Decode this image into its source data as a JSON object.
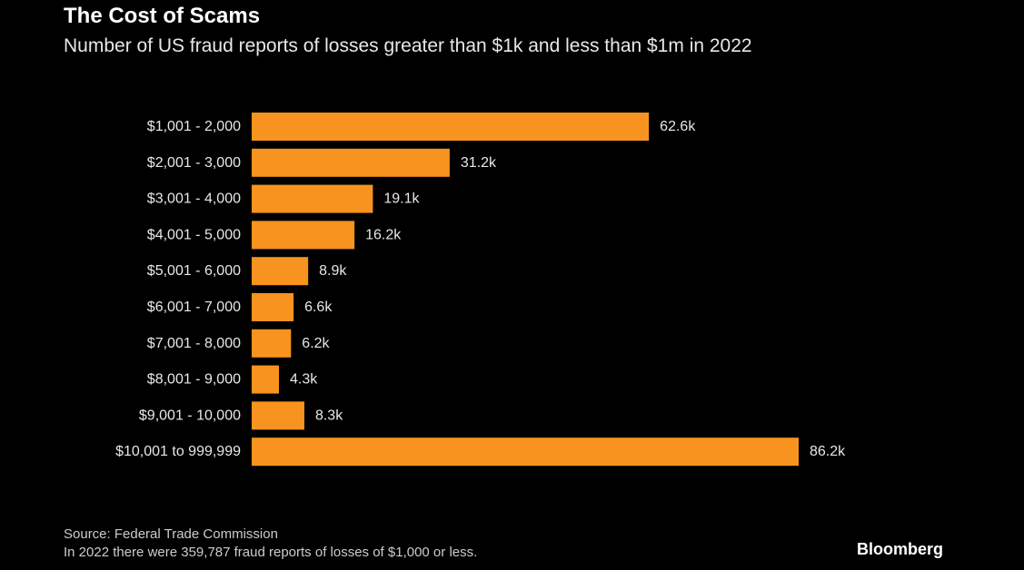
{
  "chart_data": {
    "type": "bar",
    "orientation": "horizontal",
    "title": "The Cost of Scams",
    "subtitle": "Number of US fraud reports of losses greater than $1k and less than $1m in 2022",
    "categories": [
      "$1,001 - 2,000",
      "$2,001 - 3,000",
      "$3,001 - 4,000",
      "$4,001 - 5,000",
      "$5,001 - 6,000",
      "$6,001 - 7,000",
      "$7,001 - 8,000",
      "$8,001 - 9,000",
      "$9,001 - 10,000",
      "$10,001 to 999,999"
    ],
    "values": [
      62.6,
      31.2,
      19.1,
      16.2,
      8.9,
      6.6,
      6.2,
      4.3,
      8.3,
      86.2
    ],
    "value_labels": [
      "62.6k",
      "31.2k",
      "19.1k",
      "16.2k",
      "8.9k",
      "6.6k",
      "6.2k",
      "4.3k",
      "8.3k",
      "86.2k"
    ],
    "value_unit": "thousands of reports",
    "xlabel": "",
    "ylabel": "",
    "xlim": [
      0,
      86.2
    ],
    "grid": false,
    "bar_color": "#f7931e",
    "source": "Source: Federal Trade Commission",
    "footnote": "In 2022 there were 359,787 fraud reports of losses of $1,000 or less.",
    "brand": "Bloomberg"
  }
}
